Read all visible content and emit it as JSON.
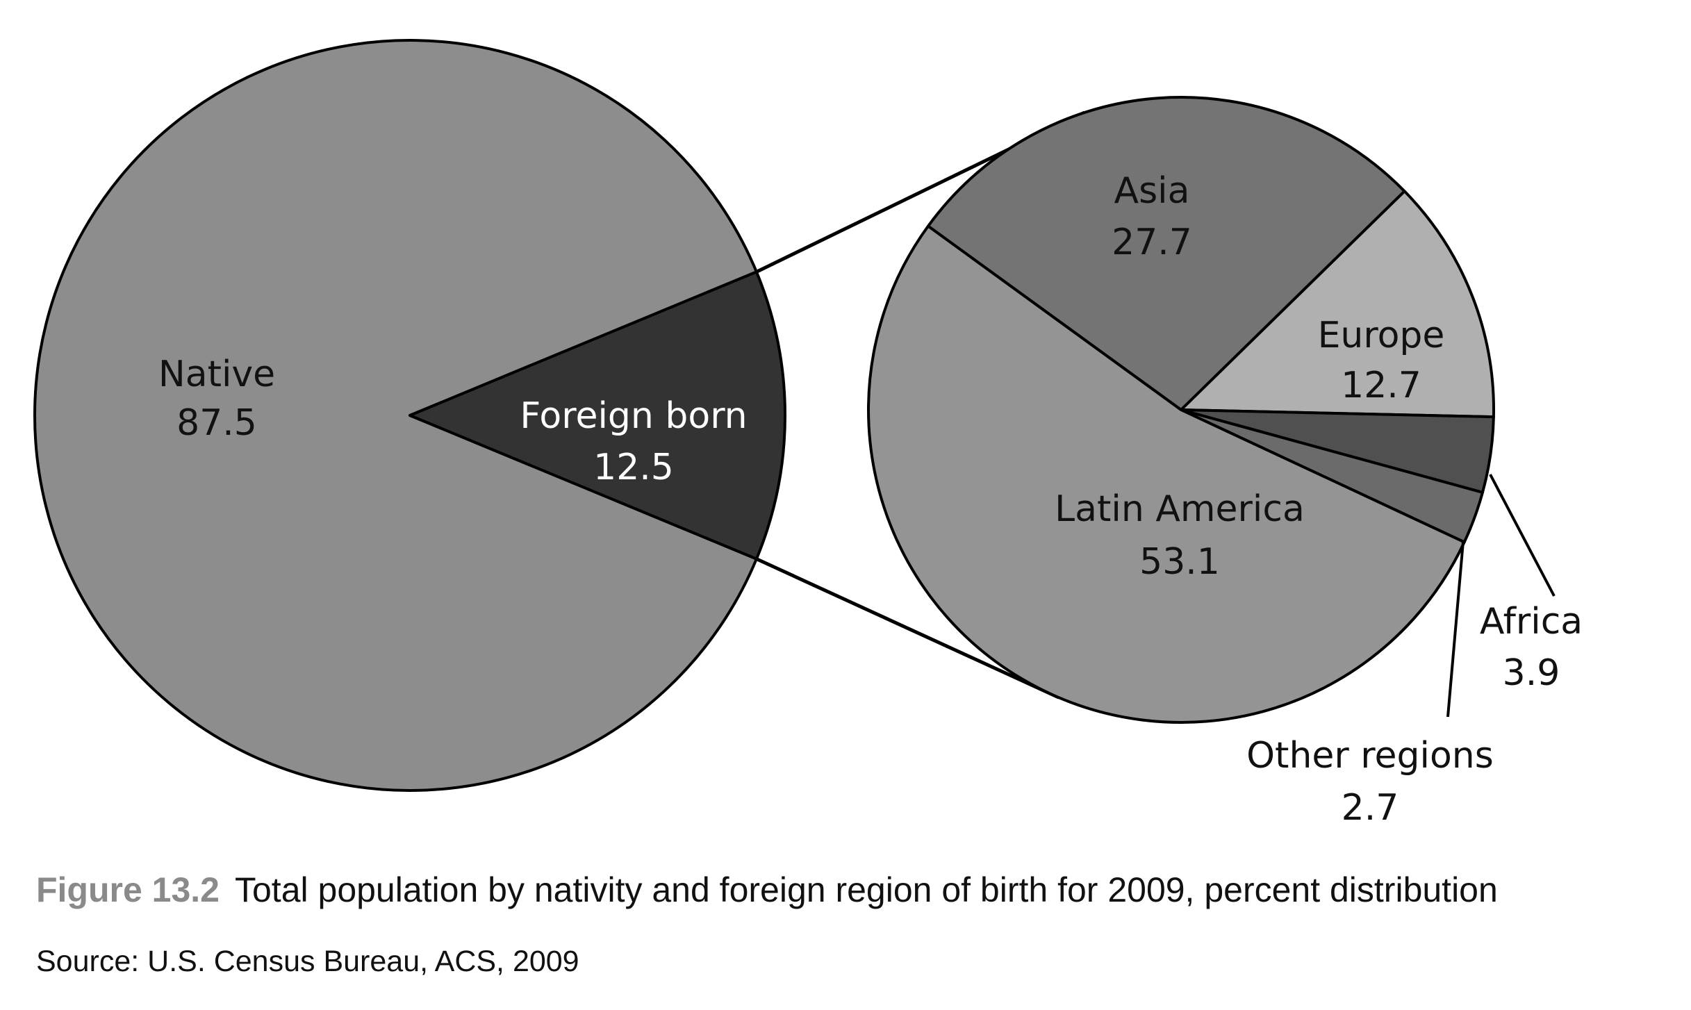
{
  "caption": {
    "figure_number": "Figure 13.2",
    "text": "Total population by nativity and foreign region of birth for 2009, percent distribution"
  },
  "source": "Source: U.S. Census Bureau, ACS, 2009",
  "colors": {
    "native": "#8d8d8d",
    "foreign_born": "#333333",
    "asia": "#747474",
    "europe": "#b0b0b0",
    "africa": "#505050",
    "other_regions": "#6b6b6b",
    "latin_america": "#949494",
    "outline": "#000000"
  },
  "chart_data": [
    {
      "type": "pie",
      "slices": [
        {
          "label": "Native",
          "value": 87.5,
          "display": "87.5"
        },
        {
          "label": "Foreign born",
          "value": 12.5,
          "display": "12.5"
        }
      ]
    },
    {
      "type": "pie",
      "slices": [
        {
          "label": "Asia",
          "value": 27.7,
          "display": "27.7"
        },
        {
          "label": "Europe",
          "value": 12.7,
          "display": "12.7"
        },
        {
          "label": "Africa",
          "value": 3.9,
          "display": "3.9"
        },
        {
          "label": "Other regions",
          "value": 2.7,
          "display": "2.7"
        },
        {
          "label": "Latin America",
          "value": 53.1,
          "display": "53.1"
        }
      ]
    }
  ]
}
